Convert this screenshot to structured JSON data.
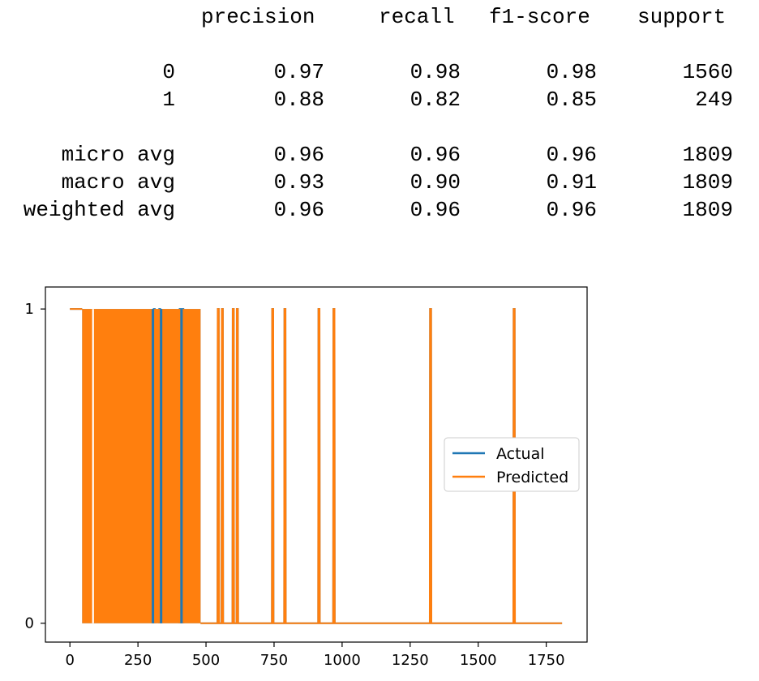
{
  "report": {
    "headers": [
      "precision",
      "recall",
      "f1-score",
      "support"
    ],
    "rows": [
      {
        "label": "0",
        "values": [
          "0.97",
          "0.98",
          "0.98",
          "1560"
        ]
      },
      {
        "label": "1",
        "values": [
          "0.88",
          "0.82",
          "0.85",
          "249"
        ]
      },
      {
        "label": "micro avg",
        "values": [
          "0.96",
          "0.96",
          "0.96",
          "1809"
        ]
      },
      {
        "label": "macro avg",
        "values": [
          "0.93",
          "0.90",
          "0.91",
          "1809"
        ]
      },
      {
        "label": "weighted avg",
        "values": [
          "0.96",
          "0.96",
          "0.96",
          "1809"
        ]
      }
    ]
  },
  "chart_data": {
    "type": "line",
    "title": "",
    "xlabel": "",
    "ylabel": "",
    "xlim": [
      -90,
      1900
    ],
    "ylim": [
      -0.06,
      1.07
    ],
    "xticks": [
      0,
      250,
      500,
      750,
      1000,
      1250,
      1500,
      1750
    ],
    "yticks": [
      0,
      1
    ],
    "grid": false,
    "legend_position": "center-right",
    "x_max": 1808,
    "series": [
      {
        "name": "Actual",
        "color": "#1f77b4",
        "spikes_to_one": [
          310,
          330,
          405,
          410,
          415,
          545,
          560,
          600,
          615,
          745,
          790,
          915,
          970,
          1325,
          1632
        ],
        "dense_region": [
          45,
          480
        ],
        "baseline_after": 480
      },
      {
        "name": "Predicted",
        "color": "#ff7f0e",
        "spikes_to_one": [
          545,
          560,
          600,
          615,
          745,
          790,
          915,
          970,
          1325,
          1632
        ],
        "dense_region": [
          45,
          480
        ],
        "gaps_in_dense": [
          85,
          305,
          335,
          410
        ],
        "baseline_after": 480
      }
    ]
  }
}
